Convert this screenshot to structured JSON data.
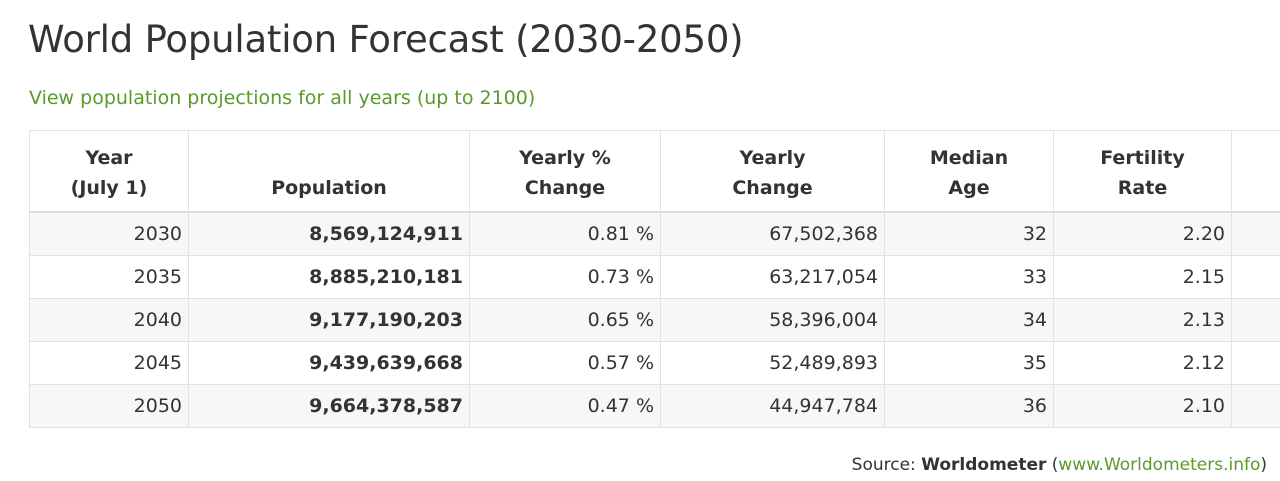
{
  "page": {
    "title": "World Population Forecast (2030-2050)",
    "projections_link": "View population projections for all years (up to 2100)"
  },
  "table": {
    "headers": [
      {
        "line1": "Year",
        "line2": "(July 1)"
      },
      {
        "line1": "",
        "line2": "Population"
      },
      {
        "line1": "Yearly %",
        "line2": "Change"
      },
      {
        "line1": "Yearly",
        "line2": "Change"
      },
      {
        "line1": "Median",
        "line2": "Age"
      },
      {
        "line1": "Fertility",
        "line2": "Rate"
      },
      {
        "line1": "",
        "line2": ""
      }
    ],
    "rows": [
      {
        "year": "2030",
        "population": "8,569,124,911",
        "yearly_pct": "0.81 %",
        "yearly_change": "67,502,368",
        "median_age": "32",
        "fertility": "2.20"
      },
      {
        "year": "2035",
        "population": "8,885,210,181",
        "yearly_pct": "0.73 %",
        "yearly_change": "63,217,054",
        "median_age": "33",
        "fertility": "2.15"
      },
      {
        "year": "2040",
        "population": "9,177,190,203",
        "yearly_pct": "0.65 %",
        "yearly_change": "58,396,004",
        "median_age": "34",
        "fertility": "2.13"
      },
      {
        "year": "2045",
        "population": "9,439,639,668",
        "yearly_pct": "0.57 %",
        "yearly_change": "52,489,893",
        "median_age": "35",
        "fertility": "2.12"
      },
      {
        "year": "2050",
        "population": "9,664,378,587",
        "yearly_pct": "0.47 %",
        "yearly_change": "44,947,784",
        "median_age": "36",
        "fertility": "2.10"
      }
    ]
  },
  "source": {
    "prefix": "Source: ",
    "name": "Worldometer",
    "open_paren": " (",
    "url_text": "www.Worldometers.info",
    "close_paren": ")"
  },
  "colors": {
    "link": "#5a9a2c",
    "text": "#333333",
    "row_stripe": "#f7f7f7",
    "border": "#e2e2e2"
  }
}
